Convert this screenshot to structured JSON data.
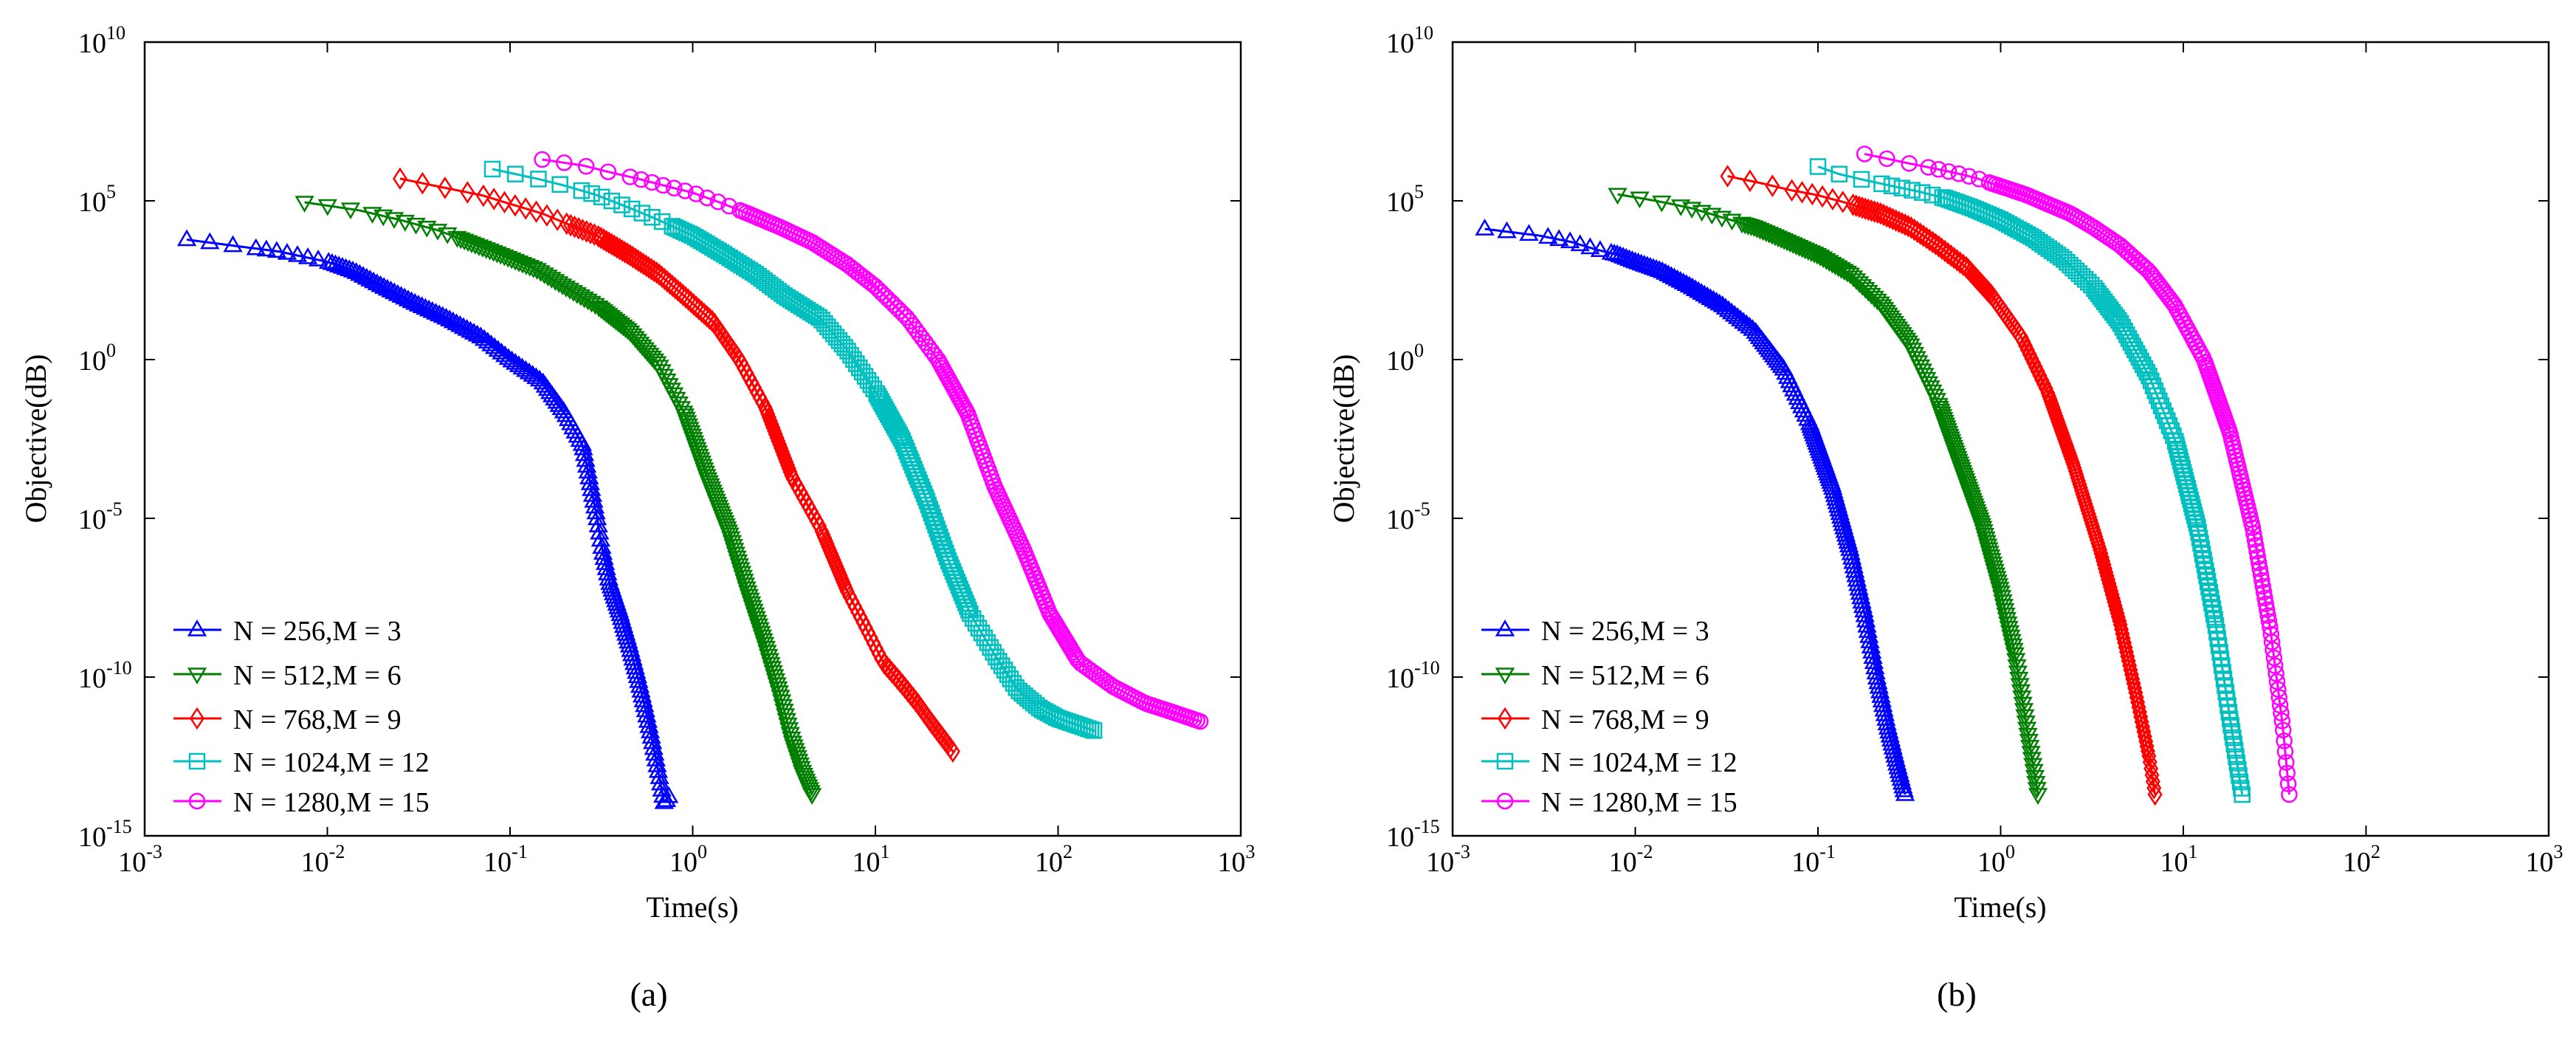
{
  "figure": {
    "panels": [
      "(a)",
      "(b)"
    ]
  },
  "colors": {
    "blue": "#0000ff",
    "green": "#007f00",
    "red": "#ff0000",
    "cyan": "#00bfbf",
    "magenta": "#ff00ff",
    "axis": "#000000"
  },
  "chart_data": [
    {
      "type": "line",
      "panel_label": "(a)",
      "xscale": "log",
      "yscale": "log",
      "xlabel": "Time(s)",
      "ylabel": "Objective(dB)",
      "xlim": [
        0.001,
        1000
      ],
      "ylim": [
        1e-15,
        10000000000.0
      ],
      "xticks": [
        {
          "base": "10",
          "exp": "-3"
        },
        {
          "base": "10",
          "exp": "-2"
        },
        {
          "base": "10",
          "exp": "-1"
        },
        {
          "base": "10",
          "exp": "0"
        },
        {
          "base": "10",
          "exp": "1"
        },
        {
          "base": "10",
          "exp": "2"
        },
        {
          "base": "10",
          "exp": "3"
        }
      ],
      "yticks": [
        {
          "base": "10",
          "exp": "-15"
        },
        {
          "base": "10",
          "exp": "-10"
        },
        {
          "base": "10",
          "exp": "-5"
        },
        {
          "base": "10",
          "exp": "0"
        },
        {
          "base": "10",
          "exp": "5"
        },
        {
          "base": "10",
          "exp": "10"
        }
      ],
      "legend_position": "bottom-left",
      "series": [
        {
          "name": "N = 256,M = 3",
          "color": "blue",
          "marker": "triangle-up",
          "x": [
            0.0017,
            0.0035,
            0.0055,
            0.0075,
            0.01,
            0.014,
            0.02,
            0.03,
            0.045,
            0.07,
            0.1,
            0.15,
            0.2,
            0.25,
            0.3,
            0.32,
            0.35,
            0.4,
            0.45,
            0.5,
            0.55,
            0.6,
            0.65,
            0.7,
            0.75
          ],
          "y": [
            6000.0,
            3500.0,
            2500.0,
            1700.0,
            1200.0,
            600,
            200,
            60,
            20,
            5,
            1,
            0.2,
            0.02,
            0.002,
            1e-05,
            1e-06,
            1e-07,
            1e-08,
            1e-09,
            1e-10,
            1e-11,
            1e-12,
            1e-13,
            1e-14,
            2e-14
          ]
        },
        {
          "name": "N = 512,M = 6",
          "color": "green",
          "marker": "triangle-down",
          "x": [
            0.0075,
            0.015,
            0.025,
            0.04,
            0.06,
            0.09,
            0.14,
            0.2,
            0.3,
            0.45,
            0.65,
            0.9,
            1.2,
            1.6,
            2.0,
            2.5,
            3.0,
            3.5,
            4.0,
            4.5
          ],
          "y": [
            90000.0,
            50000.0,
            25000.0,
            12000.0,
            5000.0,
            2000.0,
            700,
            200,
            50,
            8,
            0.7,
            0.02,
            0.0002,
            3e-06,
            5e-08,
            1e-09,
            3e-11,
            1e-12,
            1e-13,
            2e-14
          ]
        },
        {
          "name": "N = 768,M = 9",
          "color": "red",
          "marker": "diamond",
          "x": [
            0.025,
            0.045,
            0.07,
            0.1,
            0.15,
            0.2,
            0.3,
            0.45,
            0.65,
            0.9,
            1.3,
            1.8,
            2.5,
            3.5,
            5,
            7,
            9,
            11,
            14,
            17,
            20,
            24,
            27
          ],
          "y": [
            500000.0,
            250000.0,
            150000.0,
            80000.0,
            40000.0,
            20000.0,
            8000.0,
            2000.0,
            500,
            100,
            15,
            1,
            0.03,
            0.0002,
            5e-06,
            5e-08,
            3e-09,
            3e-10,
            6e-11,
            1.5e-11,
            4e-12,
            1e-12,
            4e-13
          ]
        },
        {
          "name": "N = 1024,M = 12",
          "color": "cyan",
          "marker": "square",
          "x": [
            0.08,
            0.14,
            0.2,
            0.3,
            0.45,
            0.65,
            1.0,
            1.5,
            2.2,
            3.2,
            5,
            7,
            10,
            14,
            19,
            25,
            33,
            45,
            60,
            80,
            100,
            130,
            160
          ],
          "y": [
            1000000.0,
            500000.0,
            300000.0,
            150000.0,
            60000.0,
            25000.0,
            8000.0,
            2000.0,
            500,
            100,
            20,
            2,
            0.1,
            0.003,
            4e-05,
            5e-07,
            1e-08,
            5e-10,
            4e-11,
            1e-11,
            5e-12,
            3e-12,
            2e-12
          ]
        },
        {
          "name": "N = 1280,M = 15",
          "color": "magenta",
          "marker": "circle",
          "x": [
            0.15,
            0.25,
            0.35,
            0.5,
            0.7,
            1.0,
            1.4,
            2.0,
            3.0,
            4.5,
            7,
            10,
            15,
            22,
            32,
            45,
            65,
            90,
            130,
            200,
            300,
            450,
            600
          ],
          "y": [
            2000000.0,
            1300000.0,
            800000.0,
            500000.0,
            300000.0,
            180000.0,
            90000.0,
            40000.0,
            15000.0,
            5000.0,
            1000.0,
            200,
            20,
            1,
            0.02,
            0.0001,
            1e-06,
            1e-08,
            3e-10,
            5e-11,
            1.5e-11,
            7e-12,
            4e-12
          ]
        }
      ]
    },
    {
      "type": "line",
      "panel_label": "(b)",
      "xscale": "log",
      "yscale": "log",
      "xlabel": "Time(s)",
      "ylabel": "Objective(dB)",
      "xlim": [
        0.001,
        1000
      ],
      "ylim": [
        1e-15,
        10000000000.0
      ],
      "xticks": [
        {
          "base": "10",
          "exp": "-3"
        },
        {
          "base": "10",
          "exp": "-2"
        },
        {
          "base": "10",
          "exp": "-1"
        },
        {
          "base": "10",
          "exp": "0"
        },
        {
          "base": "10",
          "exp": "1"
        },
        {
          "base": "10",
          "exp": "2"
        },
        {
          "base": "10",
          "exp": "3"
        }
      ],
      "yticks": [
        {
          "base": "10",
          "exp": "-15"
        },
        {
          "base": "10",
          "exp": "-10"
        },
        {
          "base": "10",
          "exp": "-5"
        },
        {
          "base": "10",
          "exp": "0"
        },
        {
          "base": "10",
          "exp": "5"
        },
        {
          "base": "10",
          "exp": "10"
        }
      ],
      "legend_position": "bottom-left",
      "series": [
        {
          "name": "N = 256,M = 3",
          "color": "blue",
          "marker": "triangle-up",
          "x": [
            0.0015,
            0.003,
            0.0045,
            0.006,
            0.008,
            0.01,
            0.014,
            0.02,
            0.03,
            0.045,
            0.065,
            0.09,
            0.12,
            0.15,
            0.18,
            0.21,
            0.24,
            0.27,
            0.3
          ],
          "y": [
            13000.0,
            8000.0,
            5000.0,
            3000.0,
            2000.0,
            1200.0,
            600,
            200,
            50,
            8,
            0.5,
            0.01,
            0.0001,
            1e-06,
            1e-08,
            1e-10,
            3e-12,
            2e-13,
            2e-14
          ]
        },
        {
          "name": "N = 512,M = 6",
          "color": "green",
          "marker": "triangle-down",
          "x": [
            0.008,
            0.013,
            0.02,
            0.03,
            0.045,
            0.065,
            0.1,
            0.15,
            0.22,
            0.32,
            0.45,
            0.6,
            0.8,
            1.0,
            1.2,
            1.4,
            1.6
          ],
          "y": [
            160000.0,
            100000.0,
            60000.0,
            30000.0,
            15000.0,
            6000.0,
            2000.0,
            500,
            60,
            3,
            0.05,
            0.0005,
            5e-06,
            5e-08,
            5e-10,
            2e-12,
            2e-14
          ]
        },
        {
          "name": "N = 768,M = 9",
          "color": "red",
          "marker": "diamond",
          "x": [
            0.032,
            0.05,
            0.07,
            0.1,
            0.15,
            0.22,
            0.32,
            0.45,
            0.65,
            0.9,
            1.3,
            1.8,
            2.5,
            3.5,
            4.5,
            5.5,
            6.5,
            7
          ],
          "y": [
            600000.0,
            350000.0,
            220000.0,
            150000.0,
            80000.0,
            40000.0,
            15000.0,
            4000.0,
            800,
            100,
            5,
            0.1,
            0.0005,
            1e-06,
            5e-09,
            3e-11,
            3e-13,
            2e-14
          ]
        },
        {
          "name": "N = 1024,M = 12",
          "color": "cyan",
          "marker": "square",
          "x": [
            0.1,
            0.13,
            0.18,
            0.25,
            0.35,
            0.5,
            0.7,
            1.0,
            1.5,
            2.2,
            3.2,
            4.5,
            6.5,
            9,
            12,
            15,
            18,
            21
          ],
          "y": [
            1200000.0,
            700000.0,
            450000.0,
            300000.0,
            200000.0,
            120000.0,
            60000.0,
            25000.0,
            7000.0,
            1500.0,
            200,
            15,
            0.3,
            0.003,
            5e-06,
            5e-09,
            5e-12,
            2e-14
          ]
        },
        {
          "name": "N = 1280,M = 15",
          "color": "magenta",
          "marker": "circle",
          "x": [
            0.18,
            0.3,
            0.45,
            0.6,
            0.75,
            0.9,
            1.1,
            1.4,
            1.8,
            2.4,
            3.2,
            4.5,
            6.5,
            9,
            13,
            18,
            24,
            30,
            35,
            38
          ],
          "y": [
            3000000.0,
            1600000.0,
            1000000.0,
            700000.0,
            500000.0,
            350000.0,
            240000.0,
            150000.0,
            80000.0,
            40000.0,
            15000.0,
            4000.0,
            600,
            50,
            1,
            0.005,
            5e-06,
            3e-09,
            3e-12,
            2e-14
          ]
        }
      ]
    }
  ]
}
